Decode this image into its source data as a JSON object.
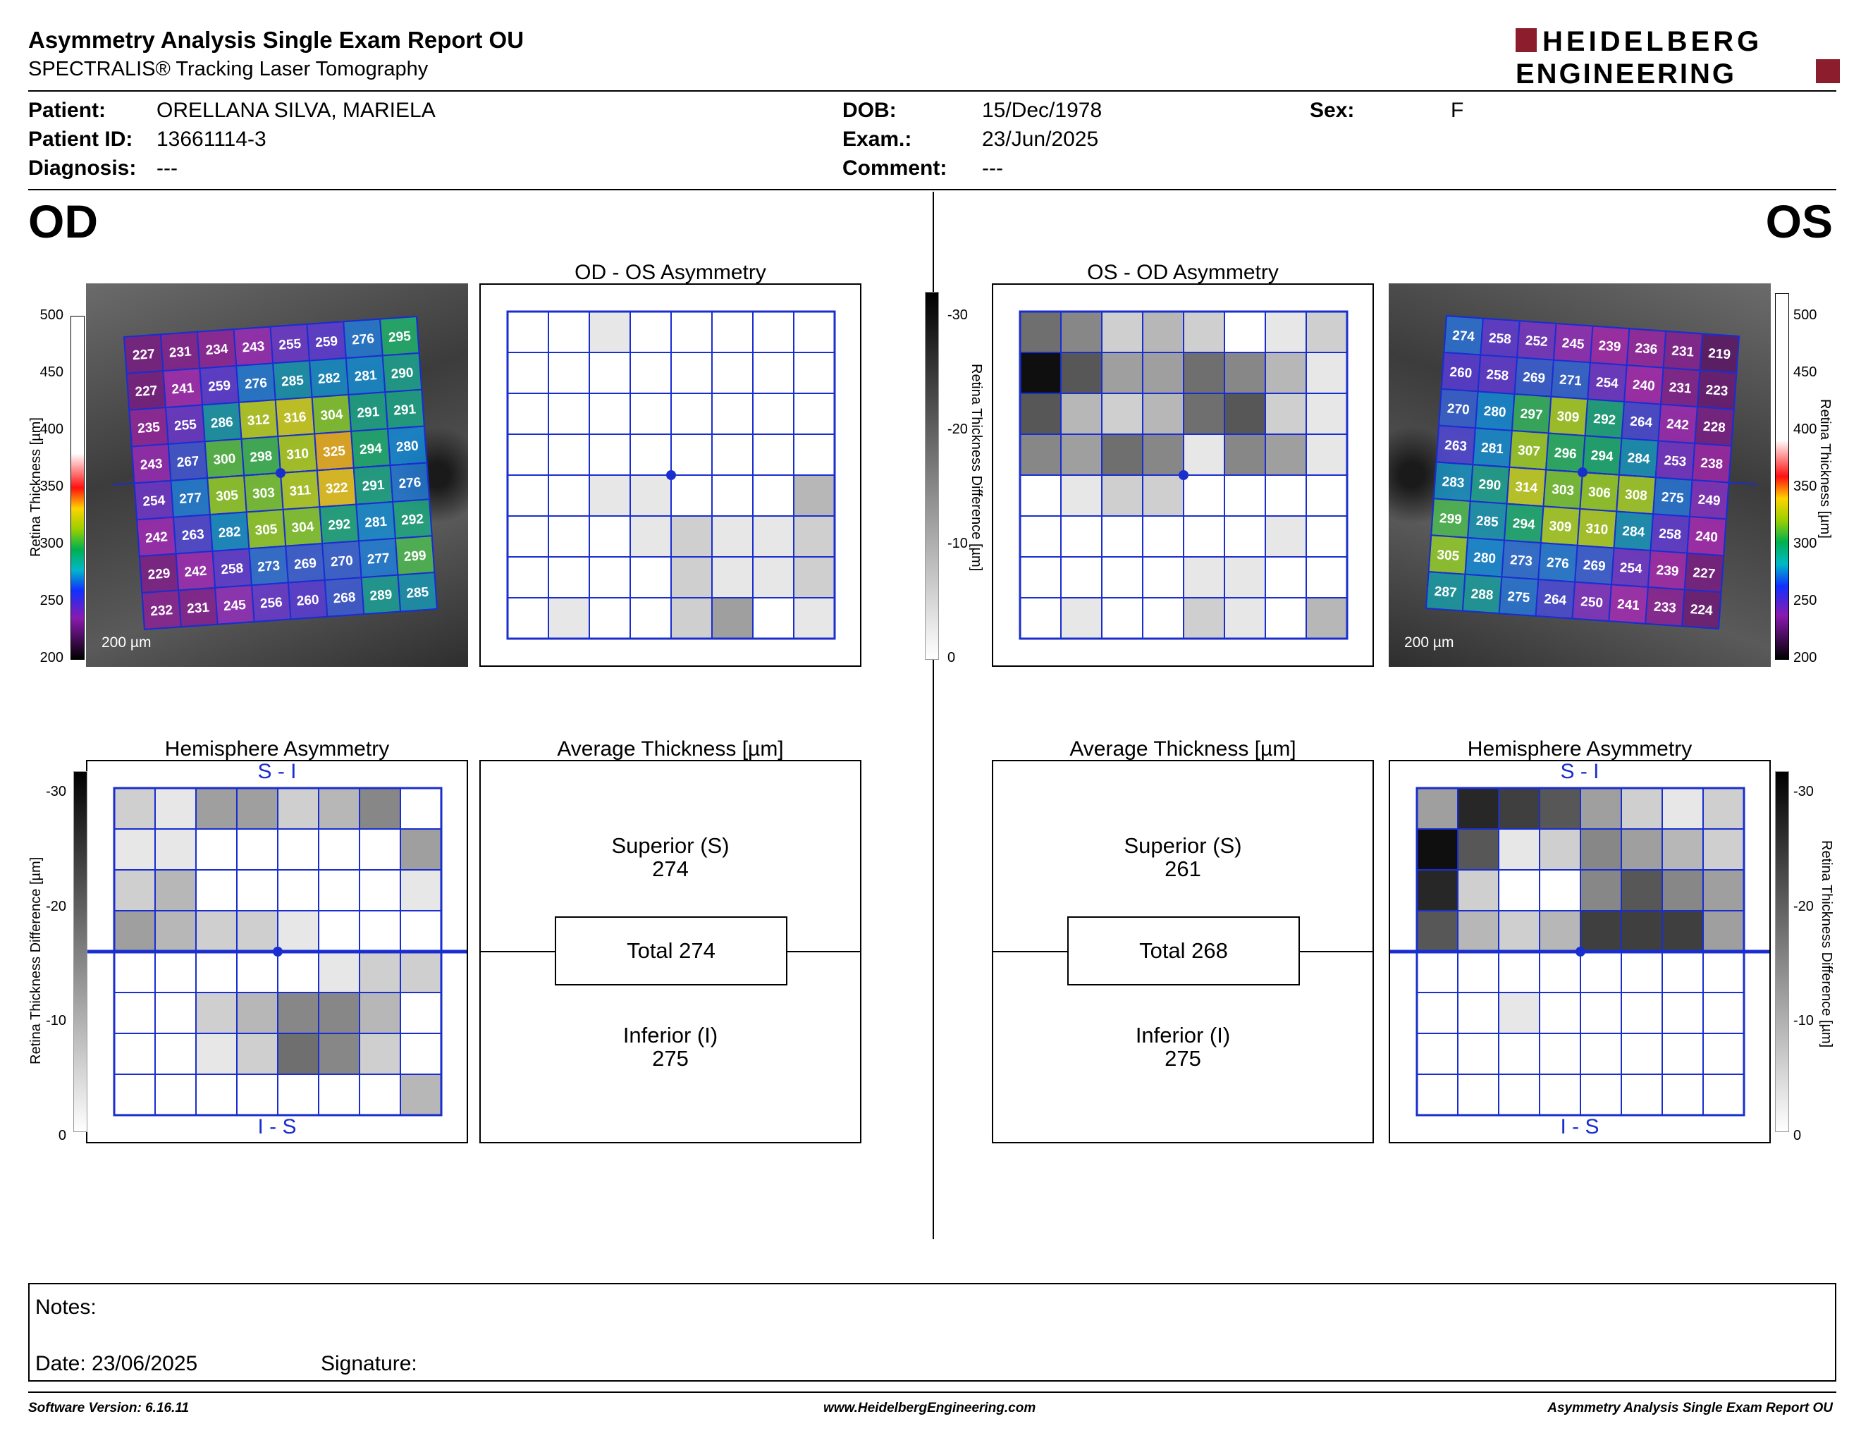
{
  "header": {
    "title": "Asymmetry Analysis Single Exam Report OU",
    "subtitle": "SPECTRALIS® Tracking Laser Tomography",
    "logo_line1": "HEIDELBERG",
    "logo_line2": "ENGINEERING"
  },
  "patient": {
    "patient_label": "Patient:",
    "patient_value": "ORELLANA SILVA, MARIELA",
    "id_label": "Patient ID:",
    "id_value": "13661114-3",
    "diagnosis_label": "Diagnosis:",
    "diagnosis_value": "---",
    "dob_label": "DOB:",
    "dob_value": "15/Dec/1978",
    "exam_label": "Exam.:",
    "exam_value": "23/Jun/2025",
    "comment_label": "Comment:",
    "comment_value": "---",
    "sex_label": "Sex:",
    "sex_value": "F"
  },
  "eyes": {
    "od": "OD",
    "os": "OS"
  },
  "titles": {
    "od_os_asym": "OD - OS Asymmetry",
    "os_od_asym": "OS - OD Asymmetry",
    "hemi": "Hemisphere Asymmetry",
    "avg": "Average Thickness [µm]",
    "si": "S - I",
    "is": "I - S",
    "scale": "200 µm",
    "retina_axis": "Retina  Thickness [µm]",
    "diff_axis": "Retina Thickness Difference [µm]"
  },
  "thickness_scale": {
    "ticks": [
      "500",
      "450",
      "400",
      "350",
      "300",
      "250",
      "200"
    ]
  },
  "diff_scale": {
    "ticks": [
      "-30",
      "-20",
      "-10",
      "0"
    ]
  },
  "od": {
    "grid": [
      [
        227,
        231,
        234,
        243,
        255,
        259,
        276,
        295
      ],
      [
        227,
        241,
        259,
        276,
        285,
        282,
        281,
        290
      ],
      [
        235,
        255,
        286,
        312,
        316,
        304,
        291,
        291
      ],
      [
        243,
        267,
        300,
        298,
        310,
        325,
        294,
        280
      ],
      [
        254,
        277,
        305,
        303,
        311,
        322,
        291,
        276
      ],
      [
        242,
        263,
        282,
        305,
        304,
        292,
        281,
        292
      ],
      [
        229,
        242,
        258,
        273,
        269,
        270,
        277,
        299
      ],
      [
        232,
        231,
        245,
        256,
        260,
        268,
        289,
        285
      ]
    ],
    "asym_levels": [
      [
        0,
        0,
        1,
        0,
        0,
        0,
        0,
        0
      ],
      [
        0,
        0,
        0,
        0,
        0,
        0,
        0,
        0
      ],
      [
        0,
        0,
        0,
        0,
        0,
        0,
        0,
        0
      ],
      [
        0,
        0,
        0,
        0,
        0,
        0,
        0,
        0
      ],
      [
        0,
        0,
        1,
        1,
        0,
        0,
        0,
        3
      ],
      [
        0,
        0,
        0,
        1,
        2,
        1,
        1,
        2
      ],
      [
        0,
        0,
        0,
        0,
        2,
        1,
        1,
        2
      ],
      [
        0,
        1,
        0,
        0,
        2,
        4,
        0,
        1
      ]
    ],
    "hemi_levels": [
      [
        2,
        1,
        4,
        4,
        2,
        3,
        5,
        0
      ],
      [
        1,
        1,
        0,
        0,
        0,
        0,
        0,
        4
      ],
      [
        2,
        3,
        0,
        0,
        0,
        0,
        0,
        1
      ],
      [
        4,
        3,
        2,
        2,
        1,
        0,
        0,
        0
      ],
      [
        0,
        0,
        0,
        0,
        0,
        1,
        2,
        2
      ],
      [
        0,
        0,
        2,
        3,
        5,
        5,
        3,
        0
      ],
      [
        0,
        0,
        1,
        2,
        6,
        5,
        2,
        0
      ],
      [
        0,
        0,
        0,
        0,
        0,
        0,
        0,
        3
      ]
    ],
    "avg": {
      "superior_label": "Superior (S)",
      "superior": "274",
      "total": "Total 274",
      "inferior_label": "Inferior (I)",
      "inferior": "275"
    }
  },
  "os": {
    "grid": [
      [
        274,
        258,
        252,
        245,
        239,
        236,
        231,
        219
      ],
      [
        260,
        258,
        269,
        271,
        254,
        240,
        231,
        223
      ],
      [
        270,
        280,
        297,
        309,
        292,
        264,
        242,
        228
      ],
      [
        263,
        281,
        307,
        296,
        294,
        284,
        253,
        238
      ],
      [
        283,
        290,
        314,
        303,
        306,
        308,
        275,
        249
      ],
      [
        299,
        285,
        294,
        309,
        310,
        284,
        258,
        240
      ],
      [
        305,
        280,
        273,
        276,
        269,
        254,
        239,
        227
      ],
      [
        287,
        288,
        275,
        264,
        250,
        241,
        233,
        224
      ]
    ],
    "asym_levels": [
      [
        6,
        5,
        2,
        3,
        2,
        0,
        1,
        2
      ],
      [
        10,
        7,
        4,
        4,
        6,
        5,
        3,
        1
      ],
      [
        7,
        3,
        2,
        3,
        6,
        7,
        2,
        1
      ],
      [
        5,
        4,
        6,
        5,
        1,
        5,
        4,
        1
      ],
      [
        0,
        1,
        2,
        2,
        0,
        0,
        0,
        0
      ],
      [
        0,
        0,
        0,
        0,
        0,
        0,
        1,
        0
      ],
      [
        0,
        0,
        0,
        0,
        1,
        1,
        0,
        0
      ],
      [
        0,
        1,
        0,
        0,
        2,
        1,
        0,
        3
      ]
    ],
    "hemi_levels": [
      [
        4,
        9,
        8,
        7,
        4,
        2,
        1,
        2
      ],
      [
        10,
        7,
        1,
        2,
        5,
        4,
        3,
        2
      ],
      [
        9,
        2,
        0,
        0,
        5,
        7,
        5,
        4
      ],
      [
        7,
        3,
        2,
        3,
        8,
        8,
        8,
        4
      ],
      [
        0,
        0,
        0,
        0,
        0,
        0,
        0,
        0
      ],
      [
        0,
        0,
        1,
        0,
        0,
        0,
        0,
        0
      ],
      [
        0,
        0,
        0,
        0,
        0,
        0,
        0,
        0
      ],
      [
        0,
        0,
        0,
        0,
        0,
        0,
        0,
        0
      ]
    ],
    "avg": {
      "superior_label": "Superior (S)",
      "superior": "261",
      "total": "Total 268",
      "inferior_label": "Inferior (I)",
      "inferior": "275"
    }
  },
  "notes": {
    "label": "Notes:",
    "date": "Date: 23/06/2025",
    "signature": "Signature:"
  },
  "footer": {
    "version": "Software Version: 6.16.11",
    "url": "www.HeidelbergEngineering.com",
    "report": "Asymmetry Analysis Single Exam Report OU"
  },
  "colors": {
    "grid_blue": "#1a2ecf",
    "logo_red": "#8c1d2c"
  }
}
